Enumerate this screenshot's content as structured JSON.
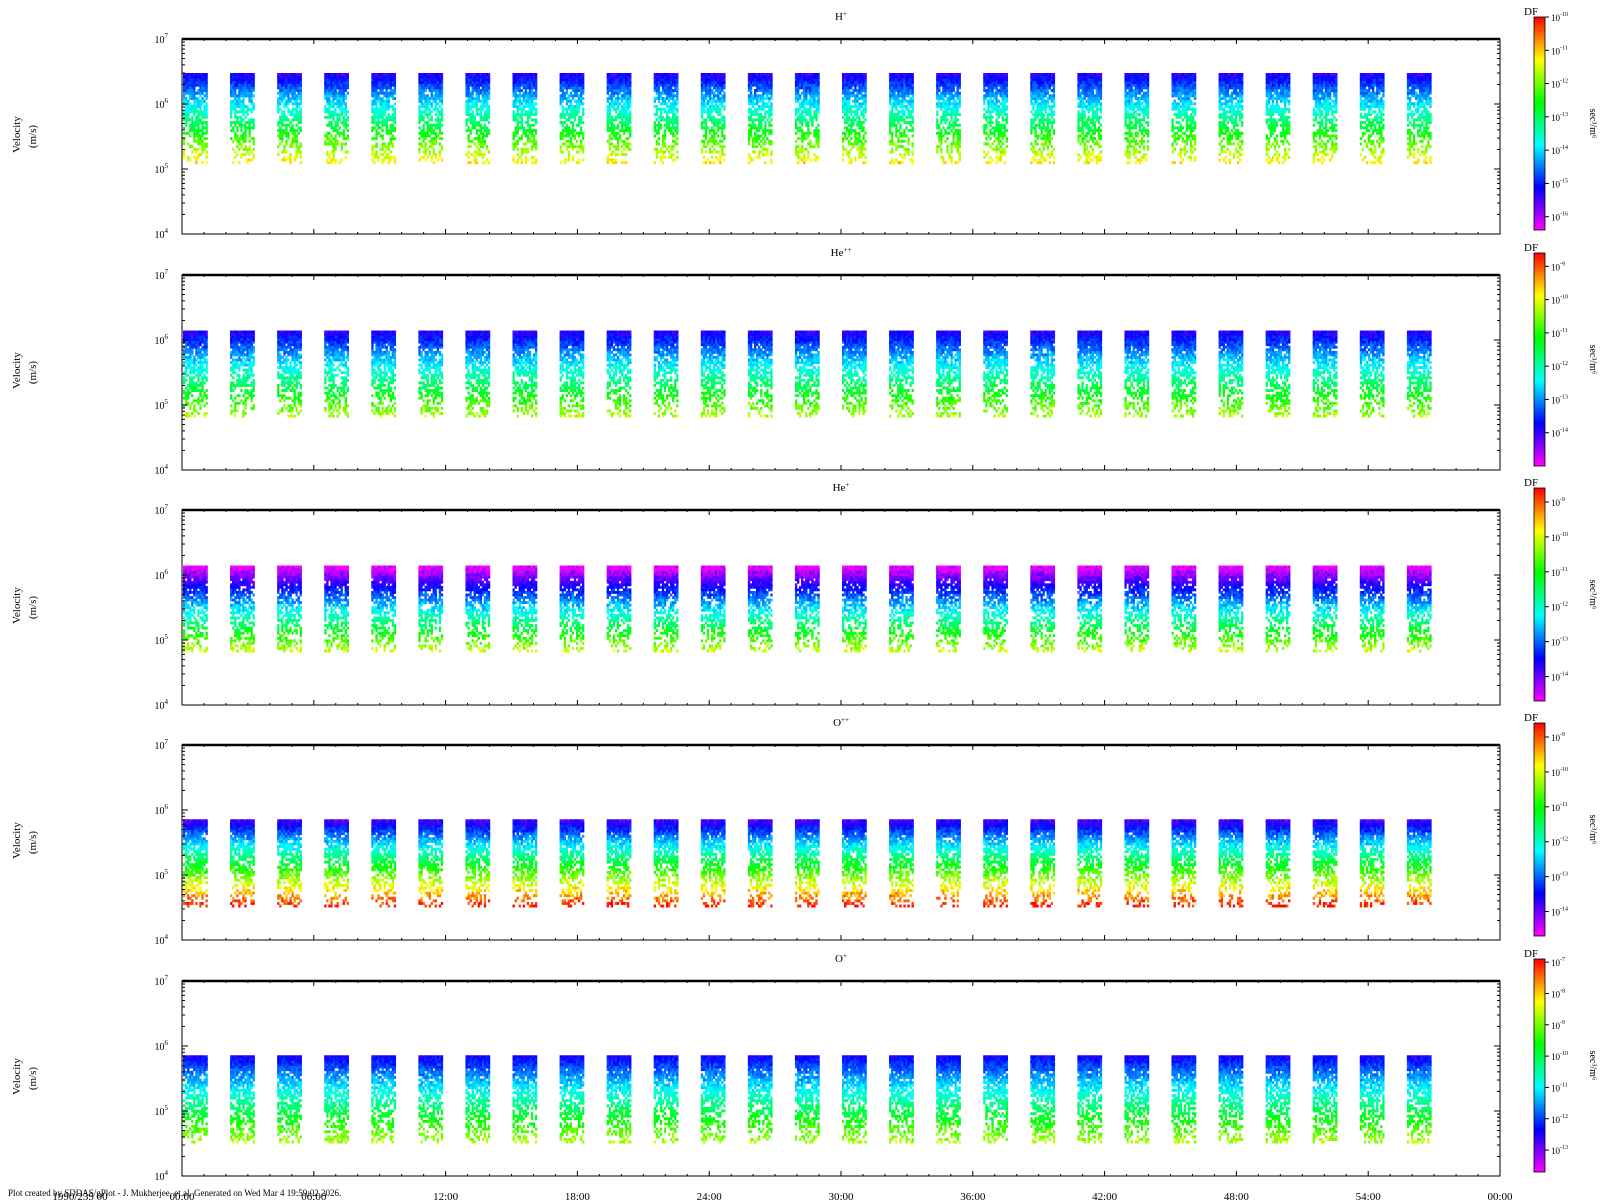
{
  "footer": "Plot created by SDDAS/gPlot - J. Mukherjee, et al.  Generated on Wed Mar 4 19:59:02 2026.",
  "time_axis": {
    "date_label": "1990/239 00",
    "tick_labels": [
      "00:00",
      "06:00",
      "12:00",
      "18:00",
      "24:00",
      "30:00",
      "36:00",
      "42:00",
      "48:00",
      "54:00",
      "00:00"
    ]
  },
  "chart_data": [
    {
      "type": "heatmap",
      "title": "H",
      "title_sup": "+",
      "ylabel": "Velocity",
      "ylabel_units": "(m/s)",
      "yscale": "log",
      "ylim": [
        10000,
        10000000
      ],
      "y_tick_exponents": [
        4,
        5,
        6,
        7
      ],
      "colorbar": {
        "label": "DF",
        "units": "sec³/m⁶",
        "scale": "log",
        "exp_range": [
          -16.4,
          -10
        ],
        "tick_exponents": [
          -10,
          -11,
          -12,
          -13,
          -14,
          -15,
          -16
        ]
      },
      "blocks": {
        "count": 27,
        "ymin": 120000,
        "ymax": 3000000,
        "fmin_exp": -15.3,
        "fmax_exp": -11.2
      }
    },
    {
      "type": "heatmap",
      "title": "He",
      "title_sup": "++",
      "ylabel": "Velocity",
      "ylabel_units": "(m/s)",
      "yscale": "log",
      "ylim": [
        10000,
        10000000
      ],
      "y_tick_exponents": [
        4,
        5,
        6,
        7
      ],
      "colorbar": {
        "label": "DF",
        "units": "sec³/m⁶",
        "scale": "log",
        "exp_range": [
          -15,
          -8.6
        ],
        "tick_exponents": [
          -9,
          -10,
          -11,
          -12,
          -13,
          -14
        ]
      },
      "blocks": {
        "count": 27,
        "ymin": 65000,
        "ymax": 1400000,
        "fmin_exp": -13.9,
        "fmax_exp": -10.3
      }
    },
    {
      "type": "heatmap",
      "title": "He",
      "title_sup": "+",
      "ylabel": "Velocity",
      "ylabel_units": "(m/s)",
      "yscale": "log",
      "ylim": [
        10000,
        10000000
      ],
      "y_tick_exponents": [
        4,
        5,
        6,
        7
      ],
      "colorbar": {
        "label": "DF",
        "units": "sec³/m⁶",
        "scale": "log",
        "exp_range": [
          -14.7,
          -8.6
        ],
        "tick_exponents": [
          -9,
          -10,
          -11,
          -12,
          -13,
          -14
        ]
      },
      "blocks": {
        "count": 27,
        "ymin": 65000,
        "ymax": 1400000,
        "fmin_exp": -14.6,
        "fmax_exp": -10.1
      }
    },
    {
      "type": "heatmap",
      "title": "O",
      "title_sup": "++",
      "ylabel": "Velocity",
      "ylabel_units": "(m/s)",
      "yscale": "log",
      "ylim": [
        10000,
        10000000
      ],
      "y_tick_exponents": [
        4,
        5,
        6,
        7
      ],
      "colorbar": {
        "label": "DF",
        "units": "sec³/m⁶",
        "scale": "log",
        "exp_range": [
          -14.7,
          -8.6
        ],
        "tick_exponents": [
          -9,
          -10,
          -11,
          -12,
          -13,
          -14
        ]
      },
      "blocks": {
        "count": 27,
        "ymin": 32000,
        "ymax": 720000,
        "fmin_exp": -13.8,
        "fmax_exp": -8.7
      }
    },
    {
      "type": "heatmap",
      "title": "O",
      "title_sup": "+",
      "ylabel": "Velocity",
      "ylabel_units": "(m/s)",
      "yscale": "log",
      "ylim": [
        10000,
        10000000
      ],
      "y_tick_exponents": [
        4,
        5,
        6,
        7
      ],
      "colorbar": {
        "label": "DF",
        "units": "sec³/m⁶",
        "scale": "log",
        "exp_range": [
          -13.7,
          -6.9
        ],
        "tick_exponents": [
          -7,
          -8,
          -9,
          -10,
          -11,
          -12,
          -13
        ]
      },
      "blocks": {
        "count": 27,
        "ymin": 32000,
        "ymax": 720000,
        "fmin_exp": -12.4,
        "fmax_exp": -8.7
      }
    }
  ]
}
